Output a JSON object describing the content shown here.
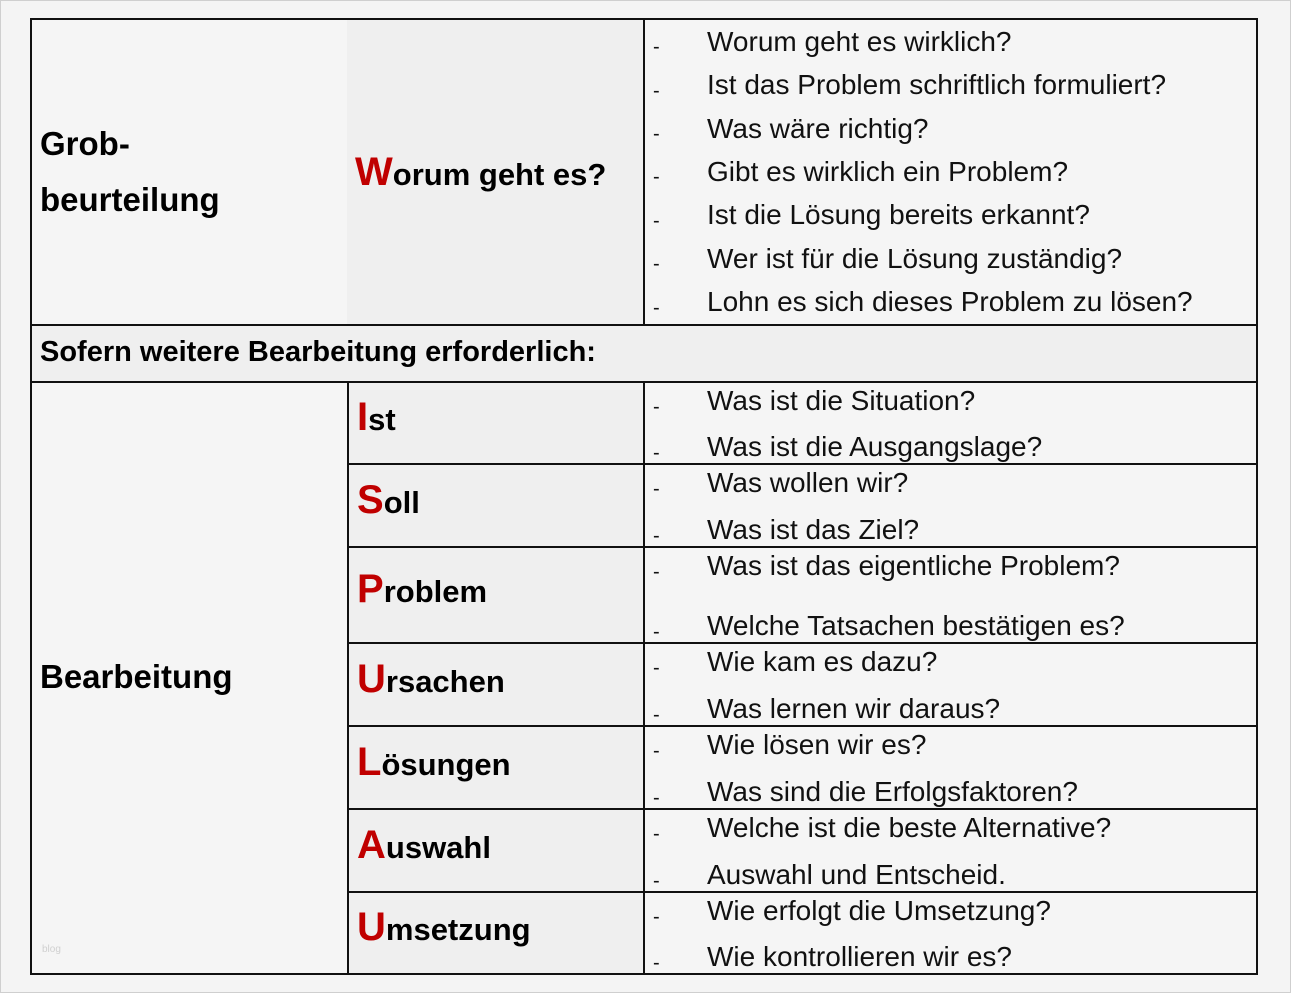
{
  "top": {
    "section_label_line1": "Grob-",
    "section_label_line2": "beurteilung",
    "phase": {
      "initial": "W",
      "rest": "orum geht es?"
    },
    "questions": [
      "Worum geht es wirklich?",
      "Ist das Problem schriftlich formuliert?",
      "Was wäre richtig?",
      "Gibt es wirklich ein Problem?",
      "Ist die Lösung bereits erkannt?",
      "Wer ist für die Lösung zuständig?",
      "Lohn es sich dieses Problem zu lösen?"
    ]
  },
  "divider_text": "Sofern weitere Bearbeitung erforderlich:",
  "bottom": {
    "section_label": "Bearbeitung",
    "watermark": "blog",
    "phases": [
      {
        "initial": "I",
        "rest": "st",
        "questions": [
          "Was ist die Situation?",
          "Was ist die Ausgangslage?"
        ]
      },
      {
        "initial": "S",
        "rest": "oll",
        "questions": [
          "Was wollen wir?",
          "Was ist das Ziel?"
        ]
      },
      {
        "initial": "P",
        "rest": "roblem",
        "questions": [
          "Was ist das eigentliche Problem?",
          "Welche Tatsachen bestätigen es?"
        ]
      },
      {
        "initial": "U",
        "rest": "rsachen",
        "questions": [
          "Wie kam es dazu?",
          "Was lernen wir daraus?"
        ]
      },
      {
        "initial": "L",
        "rest": "ösungen",
        "questions": [
          "Wie lösen wir es?",
          "Was sind die Erfolgsfaktoren?"
        ]
      },
      {
        "initial": "A",
        "rest": "uswahl",
        "questions": [
          "Welche ist die beste Alternative?",
          "Auswahl und Entscheid."
        ]
      },
      {
        "initial": "U",
        "rest": "msetzung",
        "questions": [
          "Wie erfolgt die Umsetzung?",
          "Wie kontrollieren wir es?"
        ]
      }
    ]
  },
  "dash": "-",
  "colors": {
    "initial_red": "#c00000"
  }
}
